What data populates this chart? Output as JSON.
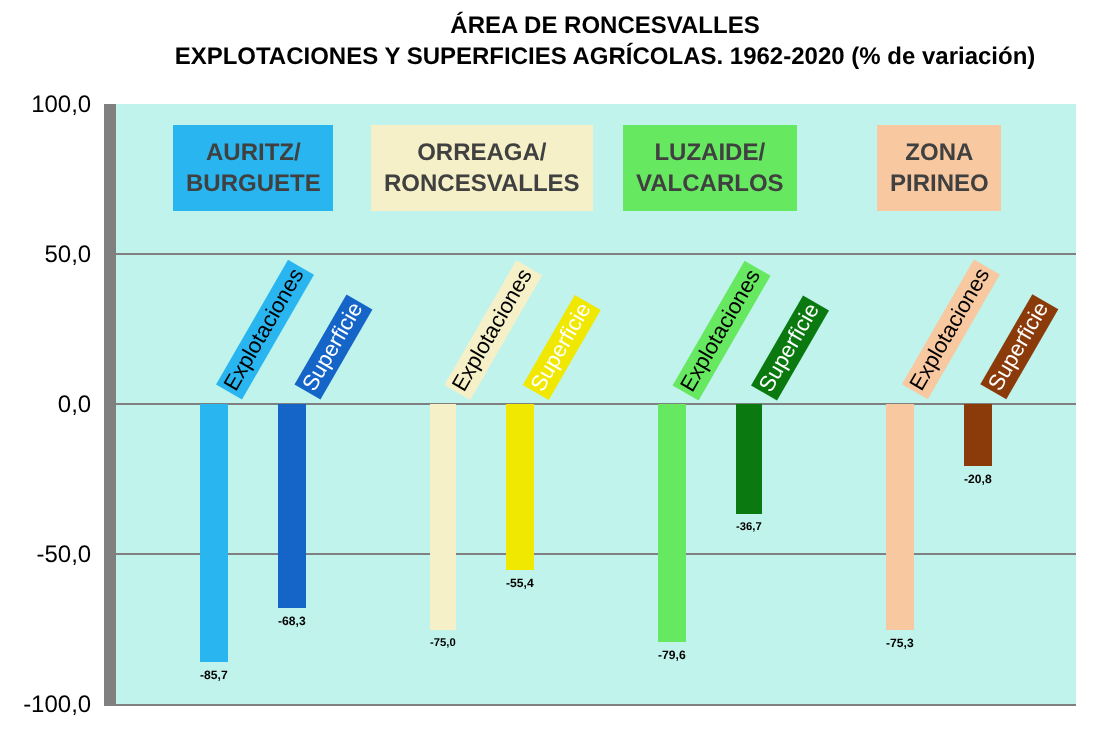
{
  "chart_data": {
    "type": "bar",
    "title": "ÁREA DE RONCESVALLES\nEXPLOTACIONES Y SUPERFICIES AGRÍCOLAS. 1962-2020 (% de variación)",
    "categories": [
      "AURITZ/\nBURGUETE",
      "ORREAGA/\nRONCESVALLES",
      "LUZAIDE/\nVALCARLOS",
      "ZONA\nPIRINEO"
    ],
    "series": [
      {
        "name": "Explotaciones",
        "colors": [
          "#29b6f0",
          "#f5f0c8",
          "#66e860",
          "#f8c8a0"
        ],
        "values": [
          -85.7,
          -75.0,
          -79.6,
          -75.3
        ],
        "value_labels": [
          "-85,7",
          "-75,0",
          "-79,6",
          "-75,3"
        ]
      },
      {
        "name": "Superficie",
        "colors": [
          "#1565c8",
          "#f0e800",
          "#0a7a10",
          "#8b3a0a"
        ],
        "values": [
          -68.3,
          -55.4,
          -36.7,
          -20.8
        ],
        "value_labels": [
          "-68,3",
          "-55,4",
          "-36,7",
          "-20,8"
        ]
      }
    ],
    "ylim": [
      -100,
      100
    ],
    "yticks": [
      {
        "value": -100,
        "label": "-100,0"
      },
      {
        "value": -50,
        "label": "-50,0"
      },
      {
        "value": 0,
        "label": "0,0"
      },
      {
        "value": 50,
        "label": "50,0"
      },
      {
        "value": 100,
        "label": "100,0"
      }
    ],
    "grid": "y",
    "legend": false
  }
}
